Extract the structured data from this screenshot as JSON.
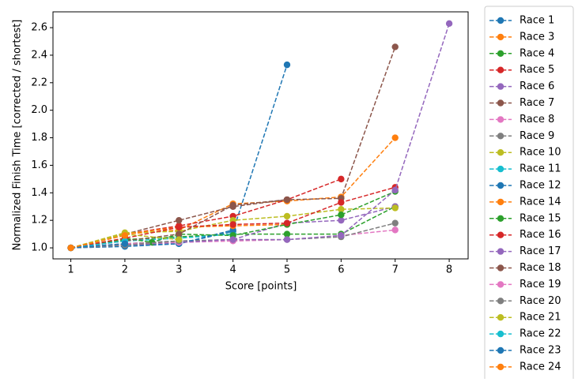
{
  "chart_data": {
    "type": "line",
    "xlabel": "Score [points]",
    "ylabel": "Normalized Finish Time [corrected / shortest]",
    "xlim": [
      0.67,
      8.35
    ],
    "ylim": [
      0.92,
      2.715
    ],
    "xticks": [
      1,
      2,
      3,
      4,
      5,
      6,
      7,
      8
    ],
    "yticks": [
      {
        "value": 1.0,
        "label": "1.0"
      },
      {
        "value": 1.2,
        "label": "1.2"
      },
      {
        "value": 1.4,
        "label": "1.4"
      },
      {
        "value": 1.6,
        "label": "1.6"
      },
      {
        "value": 1.8,
        "label": "1.8"
      },
      {
        "value": 2.0,
        "label": "2.0"
      },
      {
        "value": 2.2,
        "label": "2.2"
      },
      {
        "value": 2.4,
        "label": "2.4"
      },
      {
        "value": 2.6,
        "label": "2.6"
      }
    ],
    "grid": false,
    "legend": "outside right",
    "series": [
      {
        "name": "Race 1",
        "color": "#1f77b4",
        "x": [
          1,
          2,
          3,
          4,
          5
        ],
        "values": [
          1.0,
          1.02,
          1.03,
          1.12,
          2.33
        ]
      },
      {
        "name": "Race 3",
        "color": "#ff7f0e",
        "x": [
          1,
          2,
          3,
          4,
          5,
          6,
          7
        ],
        "values": [
          1.0,
          1.1,
          1.13,
          1.32,
          1.34,
          1.37,
          1.8
        ]
      },
      {
        "name": "Race 4",
        "color": "#2ca02c",
        "x": [
          1,
          2,
          3,
          4,
          5,
          6,
          7
        ],
        "values": [
          1.0,
          1.06,
          1.08,
          1.1,
          1.1,
          1.1,
          1.3
        ]
      },
      {
        "name": "Race 5",
        "color": "#d62728",
        "x": [
          1,
          2,
          3,
          4,
          5,
          6
        ],
        "values": [
          1.0,
          1.1,
          1.16,
          1.23,
          1.35,
          1.5
        ]
      },
      {
        "name": "Race 6",
        "color": "#9467bd",
        "x": [
          1,
          2,
          3,
          4,
          5,
          6,
          7
        ],
        "values": [
          1.0,
          1.03,
          1.05,
          1.06,
          1.18,
          1.2,
          1.3
        ]
      },
      {
        "name": "Race 7",
        "color": "#8c564b",
        "x": [
          1,
          2,
          3,
          4,
          5,
          6,
          7
        ],
        "values": [
          1.0,
          1.1,
          1.2,
          1.3,
          1.35,
          1.36,
          2.46
        ]
      },
      {
        "name": "Race 8",
        "color": "#e377c2",
        "x": [
          1,
          2,
          3,
          4,
          5,
          6,
          7
        ],
        "values": [
          1.0,
          1.02,
          1.04,
          1.05,
          1.06,
          1.09,
          1.13
        ]
      },
      {
        "name": "Race 9",
        "color": "#7f7f7f",
        "x": [
          1,
          2,
          3,
          4,
          5,
          6,
          7
        ],
        "values": [
          1.0,
          1.03,
          1.05,
          1.06,
          1.06,
          1.08,
          1.18
        ]
      },
      {
        "name": "Race 10",
        "color": "#bcbd22",
        "x": [
          1,
          2,
          3,
          4,
          5,
          6,
          7
        ],
        "values": [
          1.0,
          1.11,
          1.12,
          1.2,
          1.23,
          1.28,
          1.29
        ]
      },
      {
        "name": "Race 11",
        "color": "#17becf",
        "x": [
          1,
          2,
          3,
          4
        ],
        "values": [
          1.0,
          1.05,
          1.07,
          1.1
        ]
      },
      {
        "name": "Race 12",
        "color": "#1f77b4",
        "x": [
          1,
          2,
          3,
          4
        ],
        "values": [
          1.0,
          1.01,
          1.03,
          1.13
        ]
      },
      {
        "name": "Race 14",
        "color": "#ff7f0e",
        "x": [
          1,
          2,
          3,
          4,
          5
        ],
        "values": [
          1.0,
          1.1,
          1.15,
          1.16,
          1.17
        ]
      },
      {
        "name": "Race 15",
        "color": "#2ca02c",
        "x": [
          1,
          2,
          2.5,
          3,
          4,
          5,
          6,
          7
        ],
        "values": [
          1.0,
          1.07,
          1.04,
          1.1,
          1.09,
          1.17,
          1.24,
          1.41
        ]
      },
      {
        "name": "Race 16",
        "color": "#d62728",
        "x": [
          1,
          2,
          3,
          4,
          5,
          6,
          7
        ],
        "values": [
          1.0,
          1.07,
          1.15,
          1.17,
          1.18,
          1.33,
          1.44
        ]
      },
      {
        "name": "Race 17",
        "color": "#9467bd",
        "x": [
          1,
          2,
          3,
          4,
          5,
          6,
          7,
          8
        ],
        "values": [
          1.0,
          1.02,
          1.04,
          1.06,
          1.06,
          1.09,
          1.42,
          2.63
        ]
      },
      {
        "name": "Race 18",
        "color": "#8c564b",
        "x": [
          1,
          2,
          3,
          4,
          5
        ],
        "values": [
          1.0,
          1.05,
          1.1,
          1.31,
          1.35
        ]
      },
      {
        "name": "Race 19",
        "color": "#e377c2",
        "x": [
          1,
          2,
          3
        ],
        "values": [
          1.0,
          1.03,
          1.04
        ]
      },
      {
        "name": "Race 20",
        "color": "#7f7f7f",
        "x": [
          1,
          2,
          3
        ],
        "values": [
          1.0,
          1.02,
          1.05
        ]
      },
      {
        "name": "Race 21",
        "color": "#bcbd22",
        "x": [
          1,
          2,
          3
        ],
        "values": [
          1.0,
          1.1,
          1.06
        ]
      },
      {
        "name": "Race 22",
        "color": "#17becf",
        "x": [
          1,
          2
        ],
        "values": [
          1.0,
          1.05
        ]
      },
      {
        "name": "Race 23",
        "color": "#1f77b4",
        "x": [
          1,
          2
        ],
        "values": [
          1.0,
          1.03
        ]
      },
      {
        "name": "Race 24",
        "color": "#ff7f0e",
        "x": [
          1,
          2
        ],
        "values": [
          1.0,
          1.09
        ]
      }
    ]
  }
}
